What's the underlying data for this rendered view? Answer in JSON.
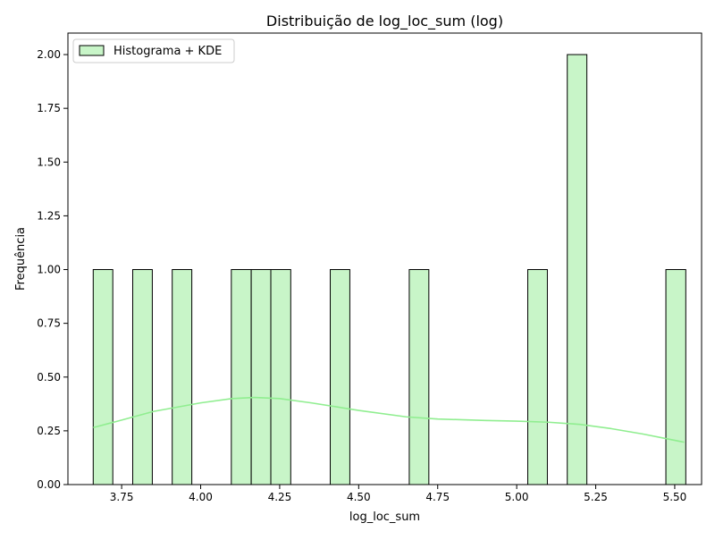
{
  "colors": {
    "bar_fill": "#c8f5c8",
    "bar_edge": "#000000",
    "kde_line": "#90ee90",
    "axes": "#000000"
  },
  "chart_data": {
    "type": "bar",
    "title": "Distribuição de log_loc_sum (log)",
    "xlabel": "log_loc_sum",
    "ylabel": "Frequência",
    "xlim": [
      3.58,
      5.585
    ],
    "ylim": [
      0,
      2.1
    ],
    "bin_width": 0.0625,
    "xticks": [
      3.75,
      4.0,
      4.25,
      4.5,
      4.75,
      5.0,
      5.25,
      5.5
    ],
    "xtick_labels": [
      "3.75",
      "4.00",
      "4.25",
      "4.50",
      "4.75",
      "5.00",
      "5.25",
      "5.50"
    ],
    "yticks": [
      0,
      0.25,
      0.5,
      0.75,
      1.0,
      1.25,
      1.5,
      1.75,
      2.0
    ],
    "ytick_labels": [
      "0.00",
      "0.25",
      "0.50",
      "0.75",
      "1.00",
      "1.25",
      "1.50",
      "1.75",
      "2.00"
    ],
    "bins": [
      {
        "x0": 3.66,
        "x1": 3.722,
        "count": 1
      },
      {
        "x0": 3.785,
        "x1": 3.847,
        "count": 1
      },
      {
        "x0": 3.91,
        "x1": 3.972,
        "count": 1
      },
      {
        "x0": 4.097,
        "x1": 4.16,
        "count": 1
      },
      {
        "x0": 4.16,
        "x1": 4.222,
        "count": 1
      },
      {
        "x0": 4.222,
        "x1": 4.285,
        "count": 1
      },
      {
        "x0": 4.41,
        "x1": 4.472,
        "count": 1
      },
      {
        "x0": 4.66,
        "x1": 4.722,
        "count": 1
      },
      {
        "x0": 5.035,
        "x1": 5.097,
        "count": 1
      },
      {
        "x0": 5.16,
        "x1": 5.222,
        "count": 2
      },
      {
        "x0": 5.472,
        "x1": 5.535,
        "count": 1
      }
    ],
    "kde": {
      "x": [
        3.66,
        3.75,
        3.85,
        4.0,
        4.1,
        4.17,
        4.25,
        4.35,
        4.5,
        4.65,
        4.75,
        4.9,
        5.0,
        5.1,
        5.2,
        5.3,
        5.4,
        5.53
      ],
      "y": [
        0.265,
        0.3,
        0.34,
        0.38,
        0.4,
        0.405,
        0.4,
        0.38,
        0.345,
        0.315,
        0.305,
        0.298,
        0.295,
        0.29,
        0.28,
        0.26,
        0.235,
        0.197
      ]
    },
    "legend": {
      "position": "top-left",
      "entries": [
        "Histograma + KDE"
      ]
    },
    "grid": false
  }
}
